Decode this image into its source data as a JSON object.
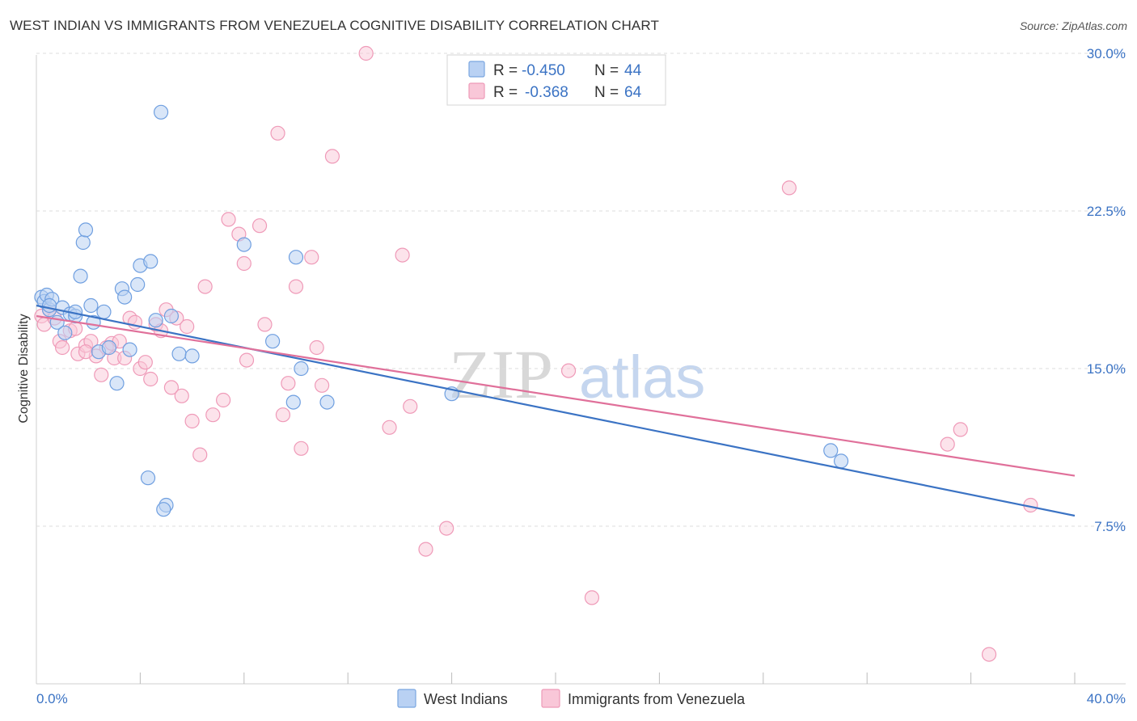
{
  "title": "WEST INDIAN VS IMMIGRANTS FROM VENEZUELA COGNITIVE DISABILITY CORRELATION CHART",
  "source": "Source: ZipAtlas.com",
  "watermark": {
    "part1": "ZIP",
    "part2": "atlas"
  },
  "legend_stats": [
    {
      "r_label": "R =",
      "r_value": "-0.450",
      "n_label": "N =",
      "n_value": "44"
    },
    {
      "r_label": "R =",
      "r_value": "-0.368",
      "n_label": "N =",
      "n_value": "64"
    }
  ],
  "chart_data": {
    "type": "scatter",
    "title": "WEST INDIAN VS IMMIGRANTS FROM VENEZUELA COGNITIVE DISABILITY CORRELATION CHART",
    "xlabel": "",
    "ylabel": "Cognitive Disability",
    "xlim": [
      0,
      40
    ],
    "ylim": [
      0,
      31
    ],
    "x_tick_labels": [
      "0.0%",
      "40.0%"
    ],
    "y_ticks": [
      7.5,
      15.0,
      22.5,
      30.0
    ],
    "y_tick_labels": [
      "7.5%",
      "15.0%",
      "22.5%",
      "30.0%"
    ],
    "grid": true,
    "legend_position": "top-center",
    "colors": {
      "west_indians": "#6f9fe0",
      "west_indians_line": "#3b73c4",
      "venezuela": "#ef9ab8",
      "venezuela_line": "#e0709a",
      "tick_text": "#3b73c4"
    },
    "series": [
      {
        "name": "West Indians",
        "trend": {
          "x": [
            0,
            40
          ],
          "y": [
            18.0,
            8.0
          ]
        },
        "points": [
          [
            0.2,
            18.4
          ],
          [
            0.3,
            18.2
          ],
          [
            0.4,
            18.5
          ],
          [
            0.5,
            17.8
          ],
          [
            0.6,
            18.3
          ],
          [
            0.8,
            17.2
          ],
          [
            1.0,
            17.9
          ],
          [
            1.1,
            16.7
          ],
          [
            1.3,
            17.6
          ],
          [
            1.5,
            17.5
          ],
          [
            1.7,
            19.4
          ],
          [
            1.8,
            21.0
          ],
          [
            1.9,
            21.6
          ],
          [
            2.1,
            18.0
          ],
          [
            2.2,
            17.2
          ],
          [
            2.4,
            15.8
          ],
          [
            2.6,
            17.7
          ],
          [
            2.8,
            16.0
          ],
          [
            3.1,
            14.3
          ],
          [
            3.3,
            18.8
          ],
          [
            3.4,
            18.4
          ],
          [
            3.6,
            15.9
          ],
          [
            3.9,
            19.0
          ],
          [
            4.0,
            19.9
          ],
          [
            4.4,
            20.1
          ],
          [
            4.6,
            17.3
          ],
          [
            4.8,
            27.2
          ],
          [
            5.2,
            17.5
          ],
          [
            5.5,
            15.7
          ],
          [
            6.0,
            15.6
          ],
          [
            8.0,
            20.9
          ],
          [
            9.1,
            16.3
          ],
          [
            10.0,
            20.3
          ],
          [
            10.2,
            15.0
          ],
          [
            9.9,
            13.4
          ],
          [
            11.2,
            13.4
          ],
          [
            16.0,
            13.8
          ],
          [
            30.6,
            11.1
          ],
          [
            31.0,
            10.6
          ],
          [
            4.3,
            9.8
          ],
          [
            5.0,
            8.5
          ],
          [
            4.9,
            8.3
          ],
          [
            0.5,
            18.0
          ],
          [
            1.5,
            17.7
          ]
        ]
      },
      {
        "name": "Immigrants from Venezuela",
        "trend": {
          "x": [
            0,
            40
          ],
          "y": [
            17.5,
            9.9
          ]
        },
        "points": [
          [
            0.2,
            17.5
          ],
          [
            0.3,
            17.1
          ],
          [
            0.5,
            17.8
          ],
          [
            0.7,
            17.4
          ],
          [
            0.9,
            16.3
          ],
          [
            1.0,
            16.0
          ],
          [
            1.3,
            16.8
          ],
          [
            1.5,
            16.9
          ],
          [
            1.6,
            15.7
          ],
          [
            1.9,
            16.1
          ],
          [
            2.1,
            16.3
          ],
          [
            2.3,
            15.6
          ],
          [
            2.5,
            14.7
          ],
          [
            2.7,
            16.0
          ],
          [
            2.9,
            16.2
          ],
          [
            3.0,
            15.5
          ],
          [
            3.2,
            16.3
          ],
          [
            3.4,
            15.5
          ],
          [
            3.6,
            17.4
          ],
          [
            3.8,
            17.2
          ],
          [
            4.0,
            15.0
          ],
          [
            4.2,
            15.3
          ],
          [
            4.4,
            14.5
          ],
          [
            4.6,
            17.1
          ],
          [
            4.8,
            16.8
          ],
          [
            5.0,
            17.8
          ],
          [
            5.2,
            14.1
          ],
          [
            5.4,
            17.4
          ],
          [
            5.6,
            13.7
          ],
          [
            5.8,
            17.0
          ],
          [
            6.0,
            12.5
          ],
          [
            6.3,
            10.9
          ],
          [
            6.5,
            18.9
          ],
          [
            6.8,
            12.8
          ],
          [
            7.2,
            13.5
          ],
          [
            7.4,
            22.1
          ],
          [
            7.8,
            21.4
          ],
          [
            8.0,
            20.0
          ],
          [
            8.1,
            15.4
          ],
          [
            8.6,
            21.8
          ],
          [
            8.8,
            17.1
          ],
          [
            9.3,
            26.2
          ],
          [
            9.5,
            12.8
          ],
          [
            9.7,
            14.3
          ],
          [
            10.0,
            18.9
          ],
          [
            10.2,
            11.2
          ],
          [
            10.6,
            20.3
          ],
          [
            10.8,
            16.0
          ],
          [
            11.0,
            14.2
          ],
          [
            11.4,
            25.1
          ],
          [
            12.7,
            30.0
          ],
          [
            13.6,
            12.2
          ],
          [
            14.1,
            20.4
          ],
          [
            14.4,
            13.2
          ],
          [
            15.0,
            6.4
          ],
          [
            15.8,
            7.4
          ],
          [
            20.5,
            14.9
          ],
          [
            21.4,
            4.1
          ],
          [
            29.0,
            23.6
          ],
          [
            35.1,
            11.4
          ],
          [
            35.6,
            12.1
          ],
          [
            38.3,
            8.5
          ],
          [
            36.7,
            1.4
          ],
          [
            1.9,
            15.8
          ]
        ]
      }
    ]
  }
}
